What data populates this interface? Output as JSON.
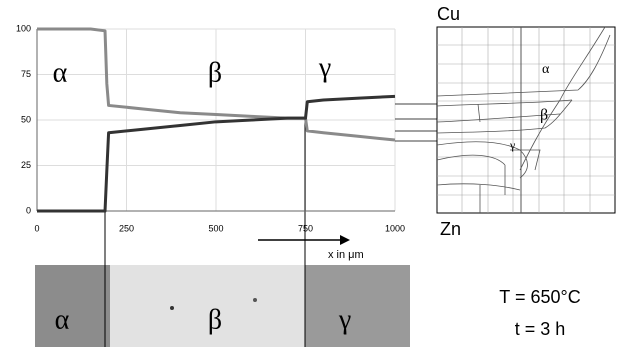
{
  "chart_data": {
    "type": "line",
    "x_label": "x in μm",
    "phase_labels": [
      "α",
      "β",
      "γ"
    ],
    "x": [
      0,
      50,
      100,
      150,
      190,
      195,
      200,
      300,
      400,
      500,
      600,
      700,
      750,
      755,
      800,
      900,
      1000
    ],
    "series": [
      {
        "color": "#8a8a8a",
        "values": [
          100,
          100,
          100,
          100,
          99,
          70,
          58,
          56,
          54,
          53,
          52,
          51,
          51,
          44,
          43,
          41,
          39
        ]
      },
      {
        "color": "#333333",
        "values": [
          0,
          0,
          0,
          0,
          0,
          22,
          43,
          45,
          47,
          49,
          50,
          51,
          51,
          60,
          61,
          62,
          63
        ]
      }
    ],
    "xlim": [
      0,
      1000
    ],
    "xticks": [
      0,
      250,
      500,
      750,
      1000
    ],
    "ylim": [
      0,
      100
    ],
    "yticks": [
      0,
      25,
      50,
      75,
      100
    ],
    "grid": true
  },
  "diagram": {
    "top": "Cu",
    "bottom": "Zn",
    "phases": [
      "α",
      "β",
      "γ"
    ]
  },
  "micrograph": {
    "phases": [
      "α",
      "β",
      "γ"
    ]
  },
  "conditions": {
    "temperature": "T = 650°C",
    "time": "t = 3 h"
  }
}
